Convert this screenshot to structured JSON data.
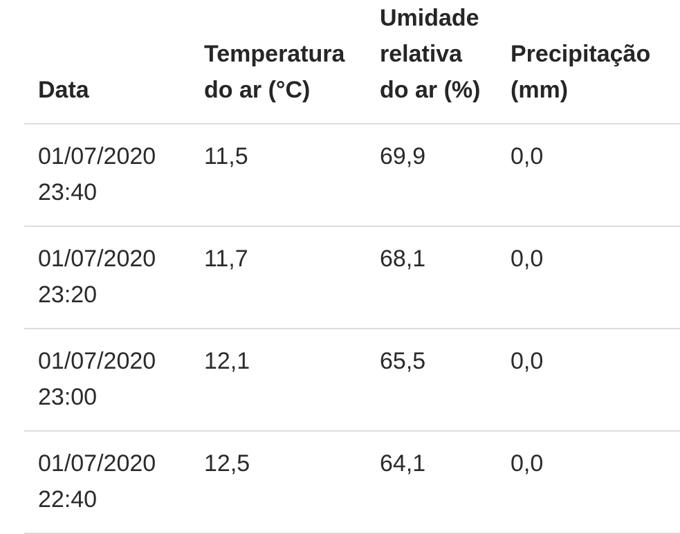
{
  "table": {
    "headers": [
      "Data",
      "Temperatura do ar (°C)",
      "Umidade relativa do ar (%)",
      "Precipitação (mm)"
    ],
    "rows": [
      [
        "01/07/2020 23:40",
        "11,5",
        "69,9",
        "0,0"
      ],
      [
        "01/07/2020 23:20",
        "11,7",
        "68,1",
        "0,0"
      ],
      [
        "01/07/2020 23:00",
        "12,1",
        "65,5",
        "0,0"
      ],
      [
        "01/07/2020 22:40",
        "12,5",
        "64,1",
        "0,0"
      ]
    ]
  }
}
